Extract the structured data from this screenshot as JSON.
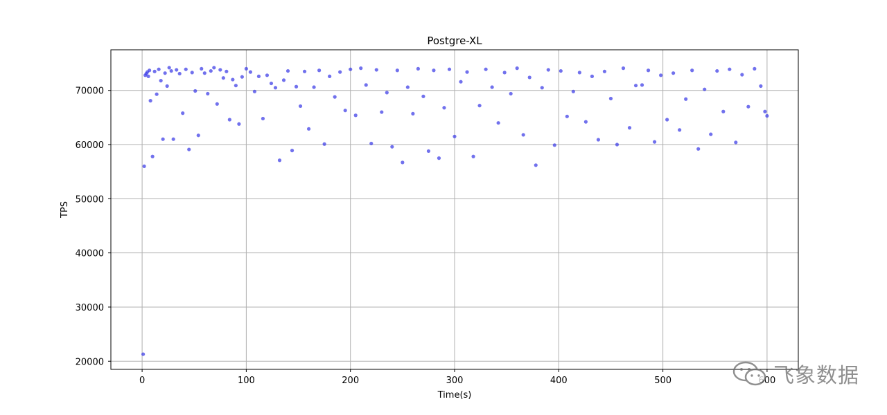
{
  "chart_data": {
    "type": "scatter",
    "title": "Postgre-XL",
    "xlabel": "Time(s)",
    "ylabel": "TPS",
    "xlim": [
      -30,
      630
    ],
    "ylim": [
      18500,
      77500
    ],
    "xticks": [
      0,
      100,
      200,
      300,
      400,
      500,
      600
    ],
    "xtick_labels": [
      "0",
      "100",
      "200",
      "300",
      "400",
      "500",
      "600"
    ],
    "yticks": [
      20000,
      30000,
      40000,
      50000,
      60000,
      70000
    ],
    "ytick_labels": [
      "20000",
      "30000",
      "40000",
      "50000",
      "60000",
      "70000"
    ],
    "grid": true,
    "point_color": "#3a3ae6",
    "series": [
      {
        "x": [
          1,
          2,
          3,
          4,
          5,
          6,
          7,
          8,
          10,
          12,
          14,
          16,
          18,
          20,
          22,
          24,
          26,
          28,
          30,
          33,
          36,
          39,
          42,
          45,
          48,
          51,
          54,
          57,
          60,
          63,
          66,
          69,
          72,
          75,
          78,
          81,
          84,
          87,
          90,
          93,
          96,
          100,
          104,
          108,
          112,
          116,
          120,
          124,
          128,
          132,
          136,
          140,
          144,
          148,
          152,
          156,
          160,
          165,
          170,
          175,
          180,
          185,
          190,
          195,
          200,
          205,
          210,
          215,
          220,
          225,
          230,
          235,
          240,
          245,
          250,
          255,
          260,
          265,
          270,
          275,
          280,
          285,
          290,
          295,
          300,
          306,
          312,
          318,
          324,
          330,
          336,
          342,
          348,
          354,
          360,
          366,
          372,
          378,
          384,
          390,
          396,
          402,
          408,
          414,
          420,
          426,
          432,
          438,
          444,
          450,
          456,
          462,
          468,
          474,
          480,
          486,
          492,
          498,
          504,
          510,
          516,
          522,
          528,
          534,
          540,
          546,
          552,
          558,
          564,
          570,
          576,
          582,
          588,
          594,
          598,
          600
        ],
        "y": [
          21300,
          56000,
          72800,
          73100,
          73400,
          72600,
          73700,
          68100,
          57800,
          73500,
          69300,
          73900,
          71800,
          61000,
          73200,
          70800,
          74200,
          73600,
          61000,
          73800,
          73100,
          65800,
          73900,
          59100,
          73300,
          69900,
          61700,
          74000,
          73200,
          69400,
          73600,
          74200,
          67500,
          73800,
          72300,
          73500,
          64600,
          72000,
          70900,
          63800,
          72500,
          74000,
          73400,
          69800,
          72600,
          64800,
          72800,
          71300,
          70500,
          57100,
          71900,
          73600,
          58900,
          70700,
          67100,
          73500,
          62900,
          70600,
          73700,
          60100,
          72600,
          68800,
          73400,
          66300,
          73900,
          65400,
          74100,
          71000,
          60200,
          73800,
          66000,
          69600,
          59600,
          73700,
          56700,
          70600,
          65700,
          74000,
          68900,
          58800,
          73700,
          57500,
          66800,
          73900,
          61500,
          71600,
          73400,
          57800,
          67200,
          73900,
          70600,
          64000,
          73300,
          69400,
          74100,
          61800,
          72400,
          56200,
          70500,
          73800,
          59900,
          73600,
          65200,
          69800,
          73300,
          64200,
          72600,
          60900,
          73500,
          68500,
          60000,
          74100,
          63100,
          70900,
          71000,
          73700,
          60500,
          72800,
          64600,
          73200,
          62700,
          68400,
          73700,
          59200,
          70200,
          61900,
          73600,
          66100,
          73900,
          60400,
          72900,
          67000,
          74000,
          70800,
          66100,
          65300
        ]
      }
    ]
  },
  "watermark": {
    "text": "飞象数据"
  }
}
